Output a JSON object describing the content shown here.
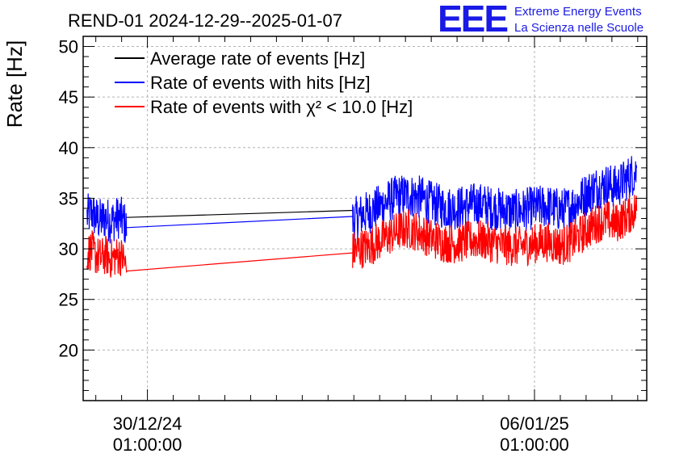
{
  "chart_data": {
    "type": "line",
    "title": "REND-01 2024-12-29--2025-01-07",
    "xlabel": "",
    "ylabel": "Rate [Hz]",
    "ylim": [
      15,
      51
    ],
    "yticks": [
      20,
      25,
      30,
      35,
      40,
      45,
      50
    ],
    "xlim_days": [
      -0.83,
      6.45
    ],
    "x_ticks": [
      {
        "pos_day": 0,
        "date": "30/12/24",
        "time": "01:00:00"
      },
      {
        "pos_day": 5,
        "date": "06/01/25",
        "time": "01:00:00"
      }
    ],
    "grid": true,
    "legend_position": "top-left",
    "series": [
      {
        "name": "Average rate of events [Hz]",
        "color": "#000000",
        "segments": [
          {
            "x": [
              -0.27,
              2.65
            ],
            "y": [
              33.1,
              33.8
            ]
          }
        ]
      },
      {
        "name": "Rate of events with hits [Hz]",
        "color": "#0000ff",
        "noise_amplitude": 2.2,
        "segments": [
          {
            "x": [
              -0.78,
              -0.72,
              -0.66,
              -0.6,
              -0.54,
              -0.48,
              -0.42,
              -0.36,
              -0.3,
              -0.27
            ],
            "y": [
              33.2,
              33.6,
              33.0,
              32.8,
              33.1,
              32.7,
              32.9,
              33.2,
              32.6,
              32.1
            ]
          },
          {
            "x": [
              -0.27,
              2.65
            ],
            "y": [
              32.1,
              33.2
            ]
          },
          {
            "x": [
              2.65,
              2.75,
              2.85,
              2.95,
              3.05,
              3.15,
              3.25,
              3.35,
              3.45,
              3.55,
              3.65,
              3.75,
              3.85,
              3.95,
              4.05,
              4.15,
              4.25,
              4.35,
              4.45,
              4.55,
              4.65,
              4.75,
              4.85,
              4.95,
              5.05,
              5.15,
              5.25,
              5.35,
              5.45,
              5.55,
              5.65,
              5.75,
              5.85,
              5.95,
              6.05,
              6.15,
              6.25,
              6.32
            ],
            "y": [
              32.8,
              33.3,
              33.6,
              34.0,
              34.4,
              34.9,
              35.2,
              35.3,
              35.2,
              35.0,
              34.6,
              34.3,
              34.1,
              34.0,
              34.1,
              34.3,
              34.4,
              34.3,
              34.0,
              33.9,
              33.8,
              33.7,
              33.8,
              34.0,
              34.1,
              34.2,
              34.0,
              33.8,
              34.1,
              34.6,
              35.3,
              35.9,
              36.2,
              36.3,
              36.1,
              36.6,
              37.3,
              37.6
            ]
          }
        ]
      },
      {
        "name": "Rate of events with χ² < 10.0 [Hz]",
        "color": "#ff0000",
        "noise_amplitude": 2.0,
        "segments": [
          {
            "x": [
              -0.78,
              -0.72,
              -0.66,
              -0.6,
              -0.54,
              -0.48,
              -0.42,
              -0.36,
              -0.3,
              -0.27
            ],
            "y": [
              29.6,
              29.9,
              29.3,
              29.1,
              29.4,
              29.0,
              29.2,
              29.4,
              28.9,
              27.8
            ]
          },
          {
            "x": [
              -0.27,
              2.65
            ],
            "y": [
              27.8,
              29.6
            ]
          },
          {
            "x": [
              2.65,
              2.75,
              2.85,
              2.95,
              3.05,
              3.15,
              3.25,
              3.35,
              3.45,
              3.55,
              3.65,
              3.75,
              3.85,
              3.95,
              4.05,
              4.15,
              4.25,
              4.35,
              4.45,
              4.55,
              4.65,
              4.75,
              4.85,
              4.95,
              5.05,
              5.15,
              5.25,
              5.35,
              5.45,
              5.55,
              5.65,
              5.75,
              5.85,
              5.95,
              6.05,
              6.15,
              6.25,
              6.32
            ],
            "y": [
              29.8,
              30.0,
              30.2,
              30.6,
              31.0,
              31.4,
              31.8,
              32.0,
              31.8,
              31.5,
              31.1,
              30.8,
              30.6,
              30.5,
              30.6,
              30.8,
              30.9,
              30.8,
              30.6,
              30.4,
              30.3,
              30.2,
              30.3,
              30.4,
              30.6,
              30.7,
              30.5,
              30.3,
              30.6,
              31.1,
              31.7,
              32.3,
              32.7,
              32.8,
              32.5,
              33.0,
              33.6,
              33.9
            ]
          }
        ]
      }
    ]
  },
  "logo": {
    "mark": "EEE",
    "line1": "Extreme Energy Events",
    "line2": "La Scienza nelle Scuole"
  }
}
